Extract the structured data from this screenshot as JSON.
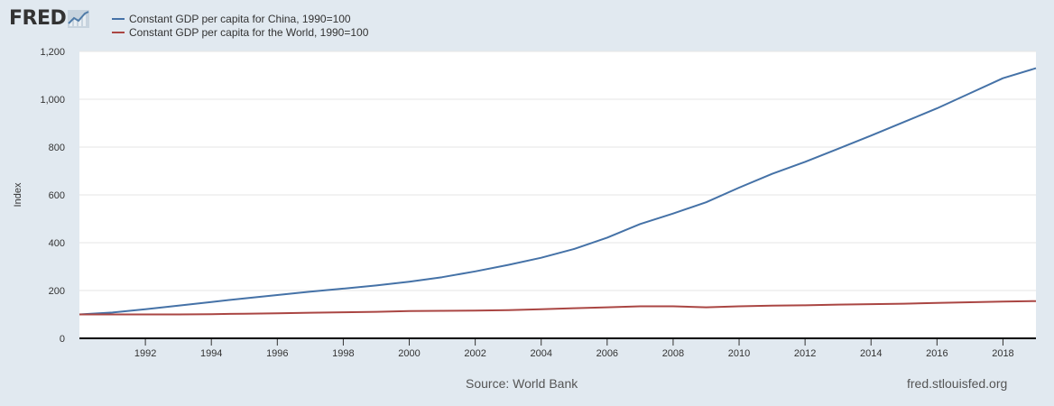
{
  "branding": {
    "logo_text": "FRED",
    "logo_icon": "line-chart-icon",
    "source": "Source: World Bank",
    "url": "fred.stlouisfed.org"
  },
  "chart_data": {
    "type": "line",
    "ylabel": "Index",
    "ylim": [
      0,
      1200
    ],
    "xlim": [
      1990,
      2019
    ],
    "yticks": [
      0,
      200,
      400,
      600,
      800,
      1000,
      1200
    ],
    "ytick_labels": [
      "0",
      "200",
      "400",
      "600",
      "800",
      "1,000",
      "1,200"
    ],
    "xticks": [
      1992,
      1994,
      1996,
      1998,
      2000,
      2002,
      2004,
      2006,
      2008,
      2010,
      2012,
      2014,
      2016,
      2018
    ],
    "xtick_labels": [
      "1992",
      "1994",
      "1996",
      "1998",
      "2000",
      "2002",
      "2004",
      "2006",
      "2008",
      "2010",
      "2012",
      "2014",
      "2016",
      "2018"
    ],
    "grid": true,
    "legend_position": "top-left",
    "x": [
      1990,
      1991,
      1992,
      1993,
      1994,
      1995,
      1996,
      1997,
      1998,
      1999,
      2000,
      2001,
      2002,
      2003,
      2004,
      2005,
      2006,
      2007,
      2008,
      2009,
      2010,
      2011,
      2012,
      2013,
      2014,
      2015,
      2016,
      2017,
      2018,
      2019
    ],
    "series": [
      {
        "name": "Constant GDP per capita for China, 1990=100",
        "color": "#4572a7",
        "values": [
          100,
          108,
          122,
          137,
          152,
          167,
          181,
          195,
          208,
          221,
          237,
          256,
          280,
          307,
          337,
          374,
          421,
          478,
          522,
          569,
          630,
          688,
          738,
          793,
          848,
          905,
          962,
          1025,
          1088,
          1130
        ]
      },
      {
        "name": "Constant GDP per capita for the World, 1990=100",
        "color": "#aa4643",
        "values": [
          100,
          100,
          100,
          100,
          101,
          103,
          105,
          107,
          109,
          111,
          114,
          115,
          116,
          118,
          122,
          126,
          130,
          134,
          134,
          130,
          134,
          137,
          138,
          141,
          143,
          145,
          148,
          151,
          154,
          156
        ]
      }
    ]
  }
}
